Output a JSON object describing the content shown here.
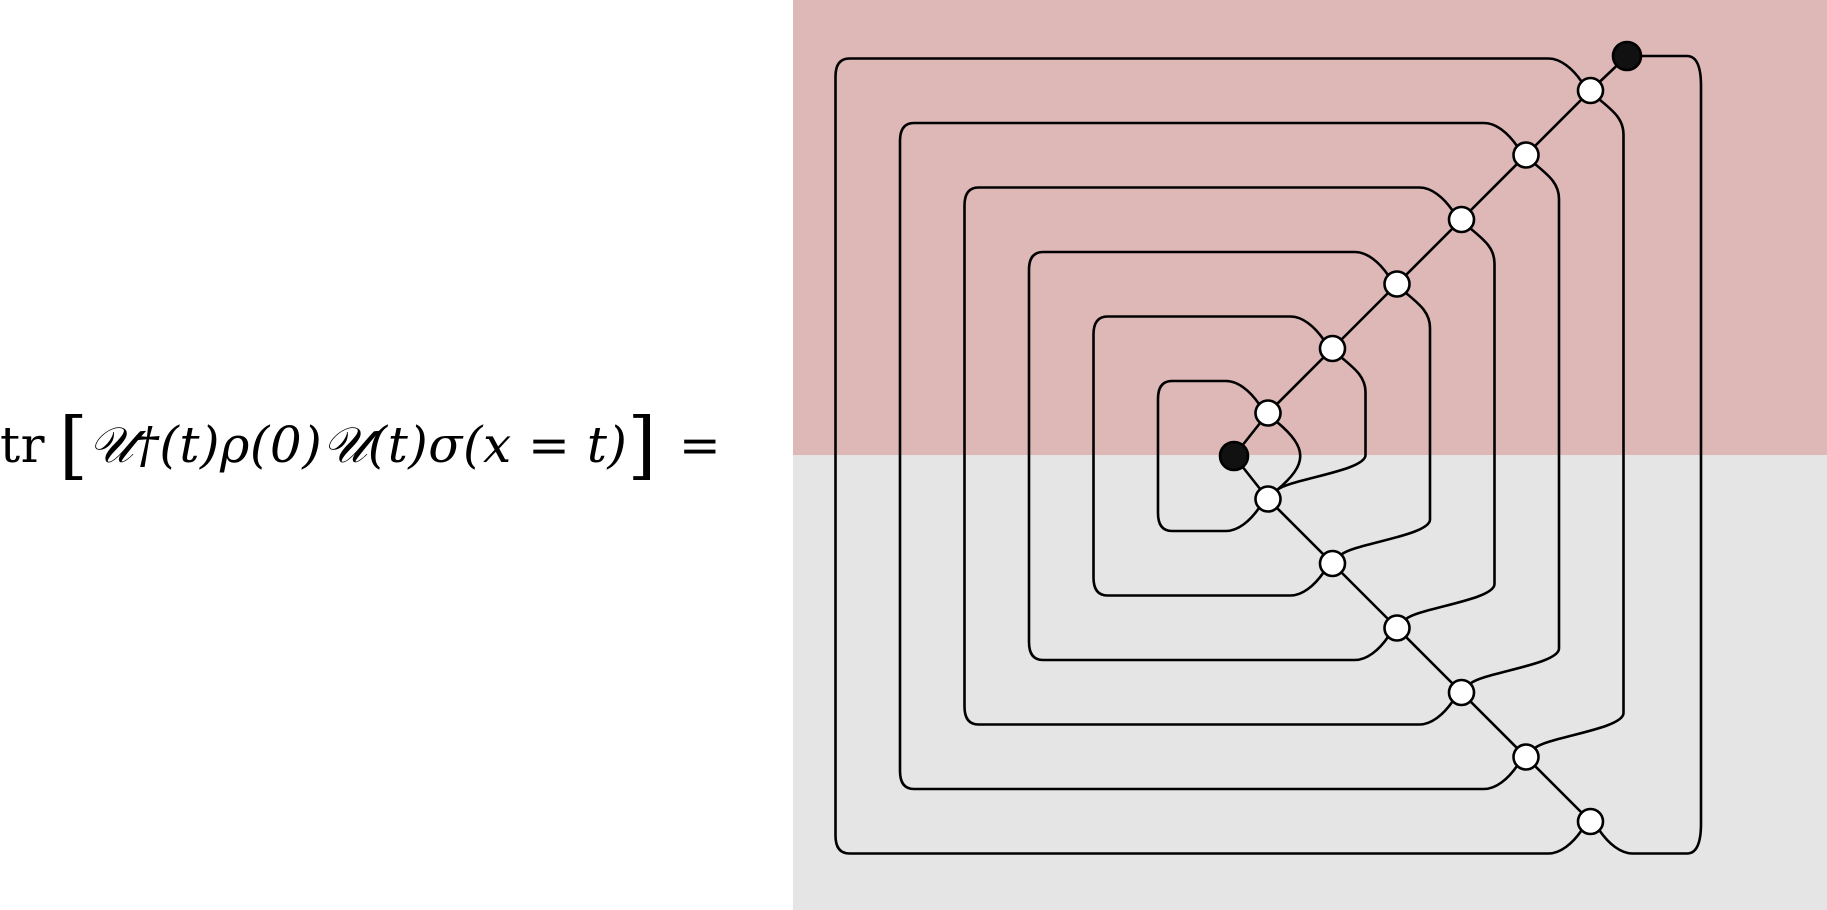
{
  "equation": {
    "trace_operator": "tr",
    "open_bracket": "[",
    "expression": "𝒰†(t)ρ(0)𝒰(t)σ(x = t)",
    "close_bracket": "]",
    "equals": "="
  },
  "diagram": {
    "upper_region_color": "#deb7b7",
    "lower_region_color": "#e5e5e5",
    "line_color": "#000000",
    "open_node_color": "#ffffff",
    "filled_node_color": "#111111",
    "layers": 6,
    "open_nodes_per_diagonal": 6,
    "filled_nodes": 2
  }
}
